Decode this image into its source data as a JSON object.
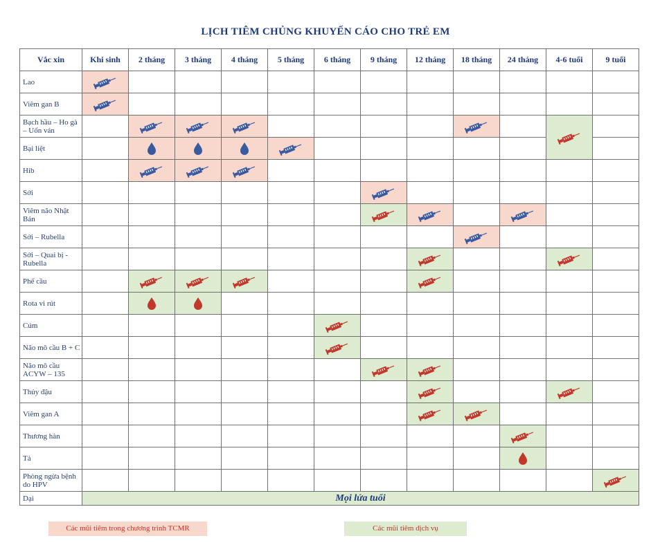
{
  "title": "LỊCH TIÊM CHỦNG KHUYẾN CÁO CHO TRẺ EM",
  "colors": {
    "program": "#3a5aa0",
    "service": "#c0392b",
    "program_bg": "#f8d7cd",
    "service_bg": "#ddebd0"
  },
  "table": {
    "headers": [
      "Vắc xin",
      "Khi sinh",
      "2 tháng",
      "3 tháng",
      "4 tháng",
      "5 tháng",
      "6 tháng",
      "9 tháng",
      "12 tháng",
      "18 tháng",
      "24 tháng",
      "4-6 tuổi",
      "9 tuổi"
    ],
    "rows": [
      {
        "name": "Lao"
      },
      {
        "name": "Viêm gan B"
      },
      {
        "name": "Bạch hầu – Ho gà – Uốn ván"
      },
      {
        "name": "Bại liệt"
      },
      {
        "name": "Hib"
      },
      {
        "name": "Sởi"
      },
      {
        "name": "Viêm não Nhật Bản"
      },
      {
        "name": "Sởi – Rubella"
      },
      {
        "name": "Sởi – Quai bị - Rubella"
      },
      {
        "name": "Phế cầu"
      },
      {
        "name": "Rota vi rút"
      },
      {
        "name": "Cúm"
      },
      {
        "name": "Não mô cầu B + C"
      },
      {
        "name": "Não mô cầu ACYW – 135"
      },
      {
        "name": "Thủy đậu"
      },
      {
        "name": "Viêm gan A"
      },
      {
        "name": "Thương hàn"
      },
      {
        "name": "Tả"
      },
      {
        "name": "Phòng ngừa bệnh do HPV"
      },
      {
        "name": "Dại"
      }
    ],
    "all_ages_label": "Mọi lứa tuổi"
  },
  "legend": {
    "program": "Các mũi tiêm trong chương trình TCMR",
    "service": "Các mũi tiêm dịch vụ"
  },
  "icons": {
    "injection": "syringe-icon",
    "oral": "drop-icon"
  }
}
